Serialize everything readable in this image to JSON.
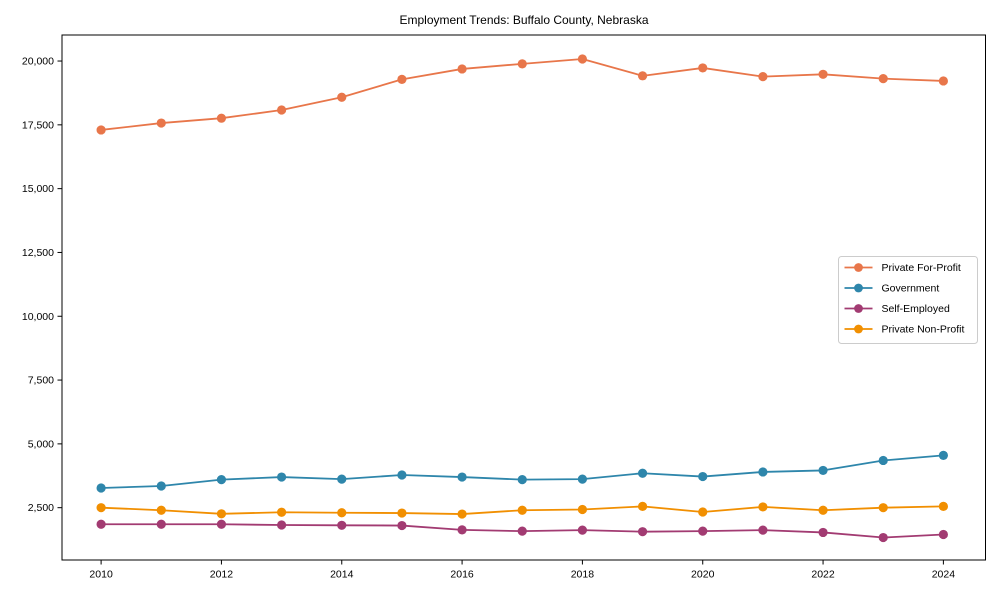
{
  "chart_data": {
    "type": "line",
    "title": "Employment Trends: Buffalo County, Nebraska",
    "xlabel": "",
    "ylabel": "",
    "x": [
      2010,
      2011,
      2012,
      2013,
      2014,
      2015,
      2016,
      2017,
      2018,
      2019,
      2020,
      2021,
      2022,
      2023,
      2024
    ],
    "series": [
      {
        "name": "Private For-Profit",
        "color": "#E8764A",
        "values": [
          17300,
          17570,
          17760,
          18080,
          18580,
          19280,
          19690,
          19890,
          20080,
          19420,
          19730,
          19390,
          19480,
          19310,
          19220
        ]
      },
      {
        "name": "Government",
        "color": "#2E86AB",
        "values": [
          3270,
          3350,
          3600,
          3700,
          3620,
          3780,
          3700,
          3600,
          3620,
          3850,
          3720,
          3900,
          3960,
          4350,
          4550
        ]
      },
      {
        "name": "Self-Employed",
        "color": "#A23B72",
        "values": [
          1850,
          1850,
          1850,
          1820,
          1810,
          1800,
          1630,
          1580,
          1620,
          1560,
          1580,
          1620,
          1530,
          1330,
          1450
        ]
      },
      {
        "name": "Private Non-Profit",
        "color": "#F18F01",
        "values": [
          2500,
          2400,
          2260,
          2320,
          2300,
          2290,
          2250,
          2400,
          2430,
          2550,
          2330,
          2530,
          2400,
          2500,
          2550
        ]
      }
    ],
    "xticks": [
      2010,
      2012,
      2014,
      2016,
      2018,
      2020,
      2022,
      2024
    ],
    "yticks": [
      2500,
      5000,
      7500,
      10000,
      12500,
      15000,
      17500,
      20000
    ],
    "ytick_labels": [
      "2,500",
      "5,000",
      "7,500",
      "10,000",
      "12,500",
      "15,000",
      "17,500",
      "20,000"
    ],
    "xlim": [
      2009.35,
      2024.7
    ],
    "ylim": [
      450,
      21020
    ],
    "grid": false,
    "legend_position": "right",
    "marker": "o"
  }
}
